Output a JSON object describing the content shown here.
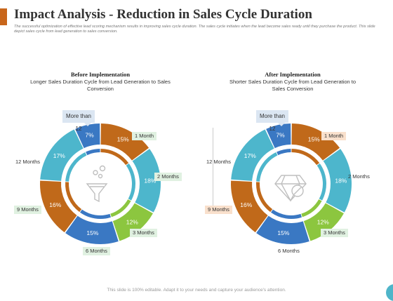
{
  "title": "Impact Analysis - Reduction in Sales Cycle Duration",
  "subtitle": "The successful optimization of effective lead scoring mechanism results in improving sales cycle duration. The sales cycle initiates when the lead become sales ready until they purchase the product. This slide depict sales cycle from lead generation to sales conversion.",
  "footer": "This slide is 100% editable. Adapt it to your needs and capture your audience's attention.",
  "colors": {
    "accent": "#c8661b",
    "orange": "#c0691a",
    "teal": "#4db6cc",
    "green": "#8cc63f",
    "blue": "#3a78c3"
  },
  "icons": {
    "before": "funnel-icon",
    "after": "gem-icon"
  },
  "panels": [
    {
      "heading": "Before Implementation",
      "description": "Longer Sales Duration Cycle from Lead Generation to Sales Conversion",
      "callout": "More than 12",
      "segments": [
        {
          "name": "1 Month",
          "value": 15,
          "label": "15%",
          "color": "#c0691a"
        },
        {
          "name": "2 Months",
          "value": 18,
          "label": "18%",
          "color": "#4db6cc"
        },
        {
          "name": "3 Months",
          "value": 12,
          "label": "12%",
          "color": "#8cc63f"
        },
        {
          "name": "6 Months",
          "value": 15,
          "label": "15%",
          "color": "#3a78c3"
        },
        {
          "name": "9 Months",
          "value": 16,
          "label": "16%",
          "color": "#c0691a"
        },
        {
          "name": "12 Months",
          "value": 17,
          "label": "17%",
          "color": "#4db6cc"
        },
        {
          "name": "More than 12",
          "value": 7,
          "label": "7%",
          "color": "#3a78c3"
        }
      ],
      "tags": {
        "m1": "1 Month",
        "m2": "2 Months",
        "m3": "3 Months",
        "m6": "6 Months",
        "m9": "9 Months",
        "m12": "12 Months"
      }
    },
    {
      "heading": "After Implementation",
      "description": "Shorter Sales Duration Cycle from Lead Generation to Sales Conversion",
      "callout": "More than 12",
      "segments": [
        {
          "name": "1 Month",
          "value": 15,
          "label": "15%",
          "color": "#c0691a"
        },
        {
          "name": "2 Months",
          "value": 18,
          "label": "18%",
          "color": "#4db6cc"
        },
        {
          "name": "3 Months",
          "value": 12,
          "label": "12%",
          "color": "#8cc63f"
        },
        {
          "name": "6 Months",
          "value": 15,
          "label": "15%",
          "color": "#3a78c3"
        },
        {
          "name": "9 Months",
          "value": 16,
          "label": "16%",
          "color": "#c0691a"
        },
        {
          "name": "12 Months",
          "value": 17,
          "label": "17%",
          "color": "#4db6cc"
        },
        {
          "name": "More than 12",
          "value": 7,
          "label": "7%",
          "color": "#3a78c3"
        }
      ],
      "tags": {
        "m1": "1 Month",
        "m2": "2 Months",
        "m3": "3 Months",
        "m6": "6 Months",
        "m9": "9 Months",
        "m12": "12 Months"
      }
    }
  ]
}
